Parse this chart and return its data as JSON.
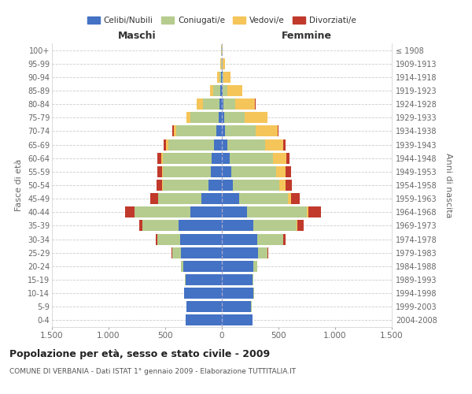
{
  "age_groups": [
    "0-4",
    "5-9",
    "10-14",
    "15-19",
    "20-24",
    "25-29",
    "30-34",
    "35-39",
    "40-44",
    "45-49",
    "50-54",
    "55-59",
    "60-64",
    "65-69",
    "70-74",
    "75-79",
    "80-84",
    "85-89",
    "90-94",
    "95-99",
    "100+"
  ],
  "birth_years": [
    "2004-2008",
    "1999-2003",
    "1994-1998",
    "1989-1993",
    "1984-1988",
    "1979-1983",
    "1974-1978",
    "1969-1973",
    "1964-1968",
    "1959-1963",
    "1954-1958",
    "1949-1953",
    "1944-1948",
    "1939-1943",
    "1934-1938",
    "1929-1933",
    "1924-1928",
    "1919-1923",
    "1914-1918",
    "1909-1913",
    "≤ 1908"
  ],
  "maschi": {
    "celibi": [
      320,
      310,
      330,
      320,
      340,
      360,
      370,
      380,
      280,
      180,
      120,
      100,
      90,
      70,
      50,
      30,
      20,
      15,
      5,
      3,
      2
    ],
    "coniugati": [
      1,
      1,
      2,
      5,
      20,
      80,
      200,
      320,
      490,
      380,
      400,
      420,
      430,
      400,
      350,
      250,
      150,
      60,
      15,
      5,
      2
    ],
    "vedovi": [
      0,
      0,
      0,
      0,
      0,
      0,
      1,
      1,
      2,
      3,
      5,
      10,
      15,
      20,
      25,
      30,
      50,
      30,
      20,
      5,
      1
    ],
    "divorziati": [
      0,
      0,
      0,
      1,
      2,
      5,
      10,
      30,
      80,
      70,
      50,
      40,
      35,
      25,
      15,
      5,
      5,
      2,
      1,
      0,
      0
    ]
  },
  "femmine": {
    "nubili": [
      270,
      260,
      280,
      270,
      280,
      320,
      310,
      280,
      220,
      150,
      100,
      80,
      70,
      50,
      30,
      20,
      15,
      10,
      5,
      3,
      2
    ],
    "coniugate": [
      1,
      1,
      2,
      5,
      30,
      80,
      230,
      380,
      530,
      430,
      410,
      400,
      380,
      330,
      270,
      180,
      100,
      40,
      10,
      3,
      1
    ],
    "vedove": [
      0,
      0,
      0,
      0,
      1,
      2,
      5,
      10,
      15,
      30,
      50,
      80,
      120,
      160,
      190,
      200,
      180,
      130,
      60,
      20,
      3
    ],
    "divorziate": [
      0,
      0,
      0,
      1,
      2,
      5,
      15,
      50,
      110,
      80,
      60,
      50,
      30,
      20,
      10,
      5,
      5,
      3,
      1,
      0,
      0
    ]
  },
  "colors": {
    "celibi": "#4472C4",
    "coniugati": "#B5CC8E",
    "vedovi": "#F5C55A",
    "divorziati": "#C0392B"
  },
  "xlim": 1500,
  "title": "Popolazione per età, sesso e stato civile - 2009",
  "subtitle": "COMUNE DI VERBANIA - Dati ISTAT 1° gennaio 2009 - Elaborazione TUTTITALIA.IT",
  "xlabel_maschi": "Maschi",
  "xlabel_femmine": "Femmine",
  "ylabel_left": "Fasce di età",
  "ylabel_right": "Anni di nascita",
  "legend_labels": [
    "Celibi/Nubili",
    "Coniugati/e",
    "Vedovi/e",
    "Divorziati/e"
  ],
  "xticks": [
    -1500,
    -1000,
    -500,
    0,
    500,
    1000,
    1500
  ],
  "xtick_labels": [
    "1.500",
    "1.000",
    "500",
    "0",
    "500",
    "1.000",
    "1.500"
  ],
  "bg_color": "#ffffff",
  "grid_color": "#cccccc",
  "spine_color": "#cccccc"
}
